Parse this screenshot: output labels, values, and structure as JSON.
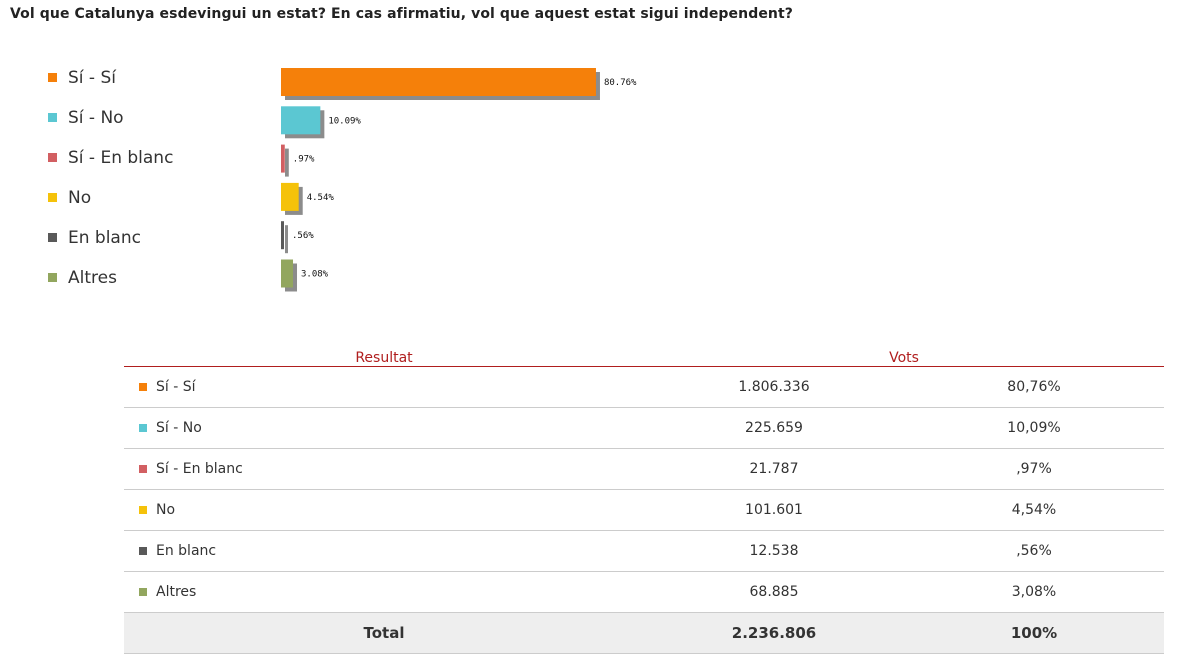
{
  "question": "Vol que Catalunya esdevingui un estat? En cas afirmatiu, vol que aquest estat sigui independent?",
  "chart_data": {
    "type": "bar",
    "orientation": "horizontal",
    "title": "Vol que Catalunya esdevingui un estat? En cas afirmatiu, vol que aquest estat sigui independent?",
    "categories": [
      "Sí - Sí",
      "Sí - No",
      "Sí - En blanc",
      "No",
      "En blanc",
      "Altres"
    ],
    "values": [
      80.76,
      10.09,
      0.97,
      4.54,
      0.56,
      3.08
    ],
    "value_labels": [
      "80.76%",
      "10.09%",
      ".97%",
      "4.54%",
      ".56%",
      "3.08%"
    ],
    "colors": [
      "#f5800a",
      "#5bc7d2",
      "#d25f62",
      "#f5c20a",
      "#595959",
      "#92a65e"
    ],
    "xlim": [
      0,
      100
    ],
    "grid": false,
    "legend": "left"
  },
  "table": {
    "headers": {
      "result": "Resultat",
      "votes": "Vots"
    },
    "rows": [
      {
        "label": "Sí - Sí",
        "votes": "1.806.336",
        "pct": "80,76%",
        "color": "#f5800a"
      },
      {
        "label": "Sí - No",
        "votes": "225.659",
        "pct": "10,09%",
        "color": "#5bc7d2"
      },
      {
        "label": "Sí - En blanc",
        "votes": "21.787",
        "pct": ",97%",
        "color": "#d25f62"
      },
      {
        "label": "No",
        "votes": "101.601",
        "pct": "4,54%",
        "color": "#f5c20a"
      },
      {
        "label": "En blanc",
        "votes": "12.538",
        "pct": ",56%",
        "color": "#595959"
      },
      {
        "label": "Altres",
        "votes": "68.885",
        "pct": "3,08%",
        "color": "#92a65e"
      }
    ],
    "total": {
      "label": "Total",
      "votes": "2.236.806",
      "pct": "100%"
    }
  }
}
